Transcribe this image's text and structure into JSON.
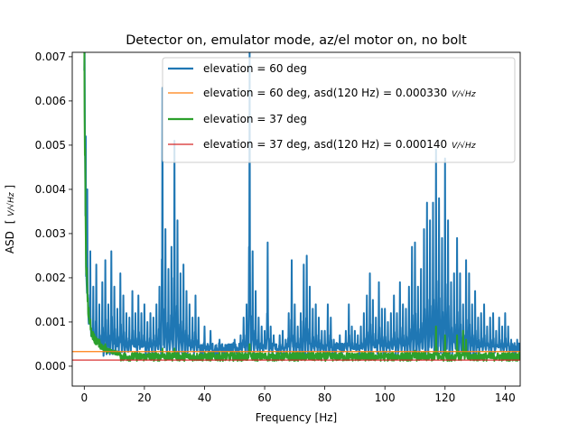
{
  "chart_data": {
    "type": "line",
    "title": "Detector on, emulator mode, az/el motor on, no bolt",
    "xlabel": "Frequency [Hz]",
    "ylabel": "ASD",
    "ylabel_unit": "V/√Hz",
    "xlim": [
      -4,
      145
    ],
    "ylim": [
      -0.00045,
      0.0071
    ],
    "xticks": [
      0,
      20,
      40,
      60,
      80,
      100,
      120,
      140
    ],
    "xtick_labels": [
      "0",
      "20",
      "40",
      "60",
      "80",
      "100",
      "120",
      "140"
    ],
    "yticks": [
      0.0,
      0.001,
      0.002,
      0.003,
      0.004,
      0.005,
      0.006,
      0.007
    ],
    "ytick_labels": [
      "0.000",
      "0.001",
      "0.002",
      "0.003",
      "0.004",
      "0.005",
      "0.006",
      "0.007"
    ],
    "grid": false,
    "legend_position": "top-right",
    "series": [
      {
        "name": "elevation = 60 deg",
        "kind": "spectrum",
        "color": "#1f77b4",
        "baseline": 0.00033,
        "low_freq": [
          [
            0.0,
            0.0071
          ],
          [
            0.1,
            0.0064
          ],
          [
            0.25,
            0.0046
          ],
          [
            0.4,
            0.0031
          ],
          [
            0.6,
            0.0021
          ],
          [
            0.9,
            0.0015
          ],
          [
            1.4,
            0.0011
          ],
          [
            2.2,
            0.0008
          ],
          [
            3.5,
            0.0006
          ],
          [
            6.0,
            0.00045
          ]
        ],
        "peaks": [
          [
            0.5,
            0.0052
          ],
          [
            1,
            0.004
          ],
          [
            2,
            0.0026
          ],
          [
            3,
            0.0018
          ],
          [
            4,
            0.0023
          ],
          [
            5,
            0.0014
          ],
          [
            6,
            0.0019
          ],
          [
            7,
            0.0024
          ],
          [
            8,
            0.0014
          ],
          [
            9,
            0.0026
          ],
          [
            10,
            0.0018
          ],
          [
            11,
            0.0013
          ],
          [
            12,
            0.0021
          ],
          [
            13,
            0.0016
          ],
          [
            14,
            0.0012
          ],
          [
            15,
            0.0011
          ],
          [
            16,
            0.0017
          ],
          [
            17,
            0.0012
          ],
          [
            18,
            0.0016
          ],
          [
            19,
            0.0012
          ],
          [
            20,
            0.0014
          ],
          [
            21,
            0.001
          ],
          [
            22,
            0.0012
          ],
          [
            23,
            0.0011
          ],
          [
            24,
            0.0014
          ],
          [
            25,
            0.0018
          ],
          [
            26,
            0.0063
          ],
          [
            27,
            0.0031
          ],
          [
            28,
            0.0022
          ],
          [
            29,
            0.0027
          ],
          [
            30,
            0.0051
          ],
          [
            31,
            0.0033
          ],
          [
            32,
            0.0021
          ],
          [
            33,
            0.0023
          ],
          [
            34,
            0.0017
          ],
          [
            35,
            0.0014
          ],
          [
            36,
            0.0011
          ],
          [
            37,
            0.0016
          ],
          [
            38,
            0.0011
          ],
          [
            40,
            0.0009
          ],
          [
            42,
            0.0008
          ],
          [
            45,
            0.0006
          ],
          [
            48,
            0.0005
          ],
          [
            50,
            0.0006
          ],
          [
            52,
            0.0007
          ],
          [
            53,
            0.0011
          ],
          [
            54,
            0.0014
          ],
          [
            55,
            0.0071
          ],
          [
            56,
            0.0026
          ],
          [
            57,
            0.0017
          ],
          [
            58,
            0.0011
          ],
          [
            59,
            0.0009
          ],
          [
            60,
            0.0008
          ],
          [
            61,
            0.0028
          ],
          [
            62,
            0.0009
          ],
          [
            63,
            0.0007
          ],
          [
            65,
            0.0007
          ],
          [
            66,
            0.0008
          ],
          [
            67,
            0.0006
          ],
          [
            68,
            0.0012
          ],
          [
            69,
            0.0024
          ],
          [
            70,
            0.0014
          ],
          [
            71,
            0.0009
          ],
          [
            72,
            0.0012
          ],
          [
            73,
            0.0023
          ],
          [
            74,
            0.0025
          ],
          [
            75,
            0.0018
          ],
          [
            76,
            0.0013
          ],
          [
            77,
            0.0014
          ],
          [
            78,
            0.0011
          ],
          [
            79,
            0.0008
          ],
          [
            80,
            0.0008
          ],
          [
            81,
            0.0014
          ],
          [
            82,
            0.0011
          ],
          [
            83,
            0.0006
          ],
          [
            85,
            0.0007
          ],
          [
            87,
            0.0008
          ],
          [
            88,
            0.0014
          ],
          [
            89,
            0.0009
          ],
          [
            90,
            0.0008
          ],
          [
            91,
            0.0007
          ],
          [
            92,
            0.0009
          ],
          [
            93,
            0.0012
          ],
          [
            94,
            0.0016
          ],
          [
            95,
            0.0021
          ],
          [
            96,
            0.0015
          ],
          [
            97,
            0.0011
          ],
          [
            98,
            0.0019
          ],
          [
            99,
            0.0013
          ],
          [
            100,
            0.0013
          ],
          [
            101,
            0.001
          ],
          [
            102,
            0.0012
          ],
          [
            103,
            0.0016
          ],
          [
            104,
            0.0012
          ],
          [
            105,
            0.0019
          ],
          [
            106,
            0.0014
          ],
          [
            107,
            0.0013
          ],
          [
            108,
            0.0018
          ],
          [
            109,
            0.0027
          ],
          [
            110,
            0.0028
          ],
          [
            111,
            0.0018
          ],
          [
            112,
            0.0022
          ],
          [
            113,
            0.0031
          ],
          [
            114,
            0.0037
          ],
          [
            115,
            0.0033
          ],
          [
            116,
            0.0037
          ],
          [
            117,
            0.0049
          ],
          [
            118,
            0.0038
          ],
          [
            119,
            0.0029
          ],
          [
            120,
            0.0047
          ],
          [
            121,
            0.0033
          ],
          [
            122,
            0.0019
          ],
          [
            123,
            0.0021
          ],
          [
            124,
            0.0029
          ],
          [
            125,
            0.0021
          ],
          [
            126,
            0.0014
          ],
          [
            127,
            0.0024
          ],
          [
            128,
            0.0021
          ],
          [
            129,
            0.0014
          ],
          [
            130,
            0.0017
          ],
          [
            131,
            0.0011
          ],
          [
            132,
            0.0012
          ],
          [
            133,
            0.0014
          ],
          [
            134,
            0.0009
          ],
          [
            135,
            0.0011
          ],
          [
            136,
            0.0012
          ],
          [
            137,
            0.0008
          ],
          [
            138,
            0.0011
          ],
          [
            139,
            0.0009
          ],
          [
            140,
            0.0012
          ],
          [
            141,
            0.0009
          ],
          [
            142,
            0.0006
          ],
          [
            144,
            0.0006
          ]
        ]
      },
      {
        "name": "elevation = 60 deg, asd(120 Hz) = 0.000330",
        "unit_label": "V/√Hz",
        "kind": "hline",
        "color": "#ff7f0e",
        "value": 0.00033
      },
      {
        "name": "elevation = 37 deg",
        "kind": "spectrum",
        "color": "#2ca02c",
        "baseline": 0.00017,
        "low_freq": [
          [
            0.0,
            0.0071
          ],
          [
            0.1,
            0.0065
          ],
          [
            0.25,
            0.0048
          ],
          [
            0.45,
            0.0033
          ],
          [
            0.7,
            0.0022
          ],
          [
            1.0,
            0.0016
          ],
          [
            1.5,
            0.0012
          ],
          [
            2.3,
            0.0008
          ],
          [
            3.5,
            0.0006
          ],
          [
            5.5,
            0.00045
          ],
          [
            8.0,
            0.00035
          ],
          [
            12.0,
            0.00028
          ]
        ],
        "peaks": [
          [
            1,
            0.0014
          ],
          [
            2,
            0.0009
          ],
          [
            3,
            0.0007
          ],
          [
            5,
            0.0006
          ],
          [
            7,
            0.0005
          ],
          [
            26,
            0.0004
          ],
          [
            30,
            0.0004
          ],
          [
            55,
            0.0005
          ],
          [
            110,
            0.00035
          ],
          [
            117,
            0.0009
          ],
          [
            120,
            0.0007
          ],
          [
            124,
            0.0007
          ],
          [
            126,
            0.0008
          ],
          [
            127,
            0.0006
          ]
        ]
      },
      {
        "name": "elevation = 37 deg, asd(120 Hz) = 0.000140",
        "unit_label": "V/√Hz",
        "kind": "hline",
        "color": "#d62728",
        "value": 0.00014
      }
    ]
  }
}
